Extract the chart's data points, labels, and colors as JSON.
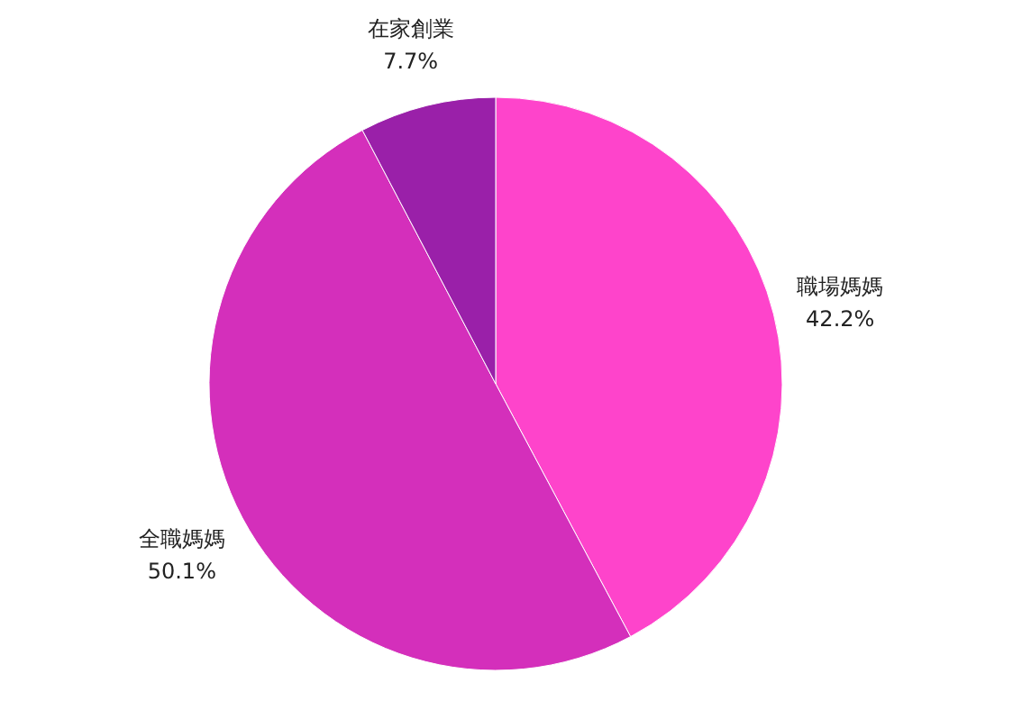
{
  "chart_data": {
    "type": "pie",
    "categories": [
      "職場媽媽",
      "全職媽媽",
      "在家創業"
    ],
    "values": [
      42.2,
      50.1,
      7.7
    ],
    "colors": [
      "#fe44cb",
      "#d42fbb",
      "#9a20a9"
    ],
    "value_labels": [
      "42.2%",
      "50.1%",
      "7.7%"
    ]
  }
}
